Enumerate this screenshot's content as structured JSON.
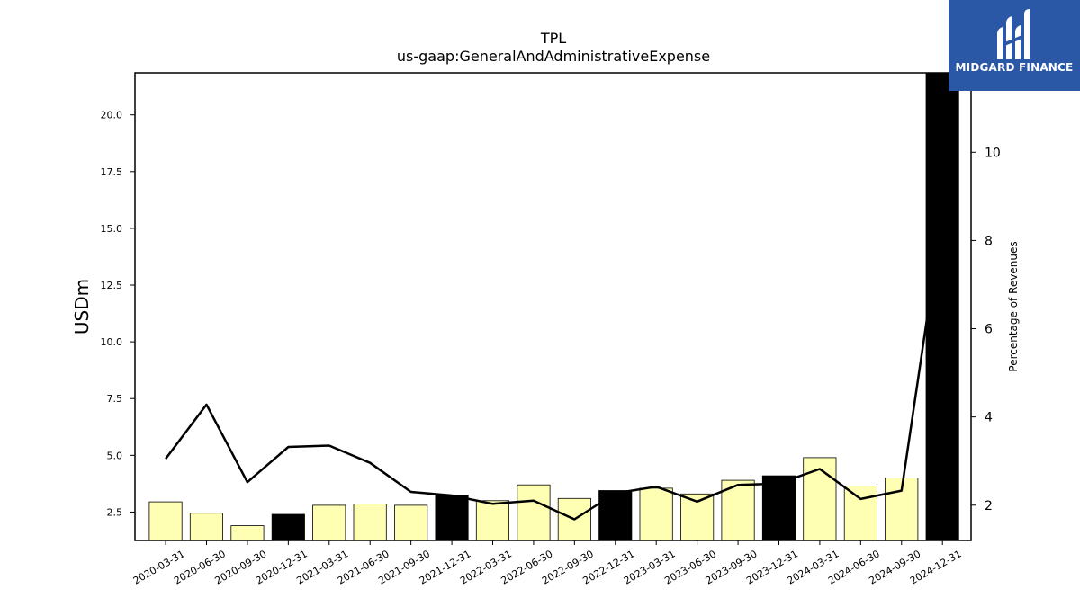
{
  "brand": {
    "name": "MIDGARD FINANCE",
    "logo_icon": "midgard-finance-logo"
  },
  "chart_data": {
    "type": "bar",
    "title": "TPL",
    "subtitle": "us-gaap:GeneralAndAdministrativeExpense",
    "ylabel": "USDm",
    "ylabel_right": "Percentage of Revenues",
    "categories": [
      "2020-03-31",
      "2020-06-30",
      "2020-09-30",
      "2020-12-31",
      "2021-03-31",
      "2021-06-30",
      "2021-09-30",
      "2021-12-31",
      "2022-03-31",
      "2022-06-30",
      "2022-09-30",
      "2022-12-31",
      "2023-03-31",
      "2023-06-30",
      "2023-09-30",
      "2023-12-31",
      "2024-03-31",
      "2024-06-30",
      "2024-09-30",
      "2024-12-31"
    ],
    "series": [
      {
        "values": [
          2.95,
          2.45,
          1.9,
          2.4,
          2.8,
          2.85,
          2.8,
          3.25,
          3.0,
          3.7,
          3.1,
          3.45,
          3.55,
          3.3,
          3.9,
          4.1,
          4.9,
          3.65,
          4.0,
          22.0
        ],
        "axis": "left",
        "style": "bar"
      },
      {
        "values": [
          3.05,
          4.28,
          2.52,
          3.32,
          3.35,
          2.96,
          2.3,
          2.22,
          2.03,
          2.1,
          1.68,
          2.27,
          2.42,
          2.08,
          2.46,
          2.49,
          2.82,
          2.14,
          2.33,
          8.6
        ],
        "axis": "right",
        "style": "line"
      }
    ],
    "annual_categories": [
      "2020-12-31",
      "2021-12-31",
      "2022-12-31",
      "2023-12-31",
      "2024-12-31"
    ],
    "ylim": [
      1.25,
      21.85
    ],
    "y2lim": [
      1.2,
      11.8
    ],
    "yticks": [
      "2.5",
      "5.0",
      "7.5",
      "10.0",
      "12.5",
      "15.0",
      "17.5",
      "20.0"
    ],
    "y2ticks": [
      "2",
      "4",
      "6",
      "8",
      "10"
    ],
    "colors": {
      "bar_quarter": "#ffffb3",
      "bar_annual": "#000000",
      "bar_edge": "#000000",
      "line": "#000000",
      "logo_bg": "#2a57a6"
    },
    "grid": false,
    "legend": "none"
  }
}
